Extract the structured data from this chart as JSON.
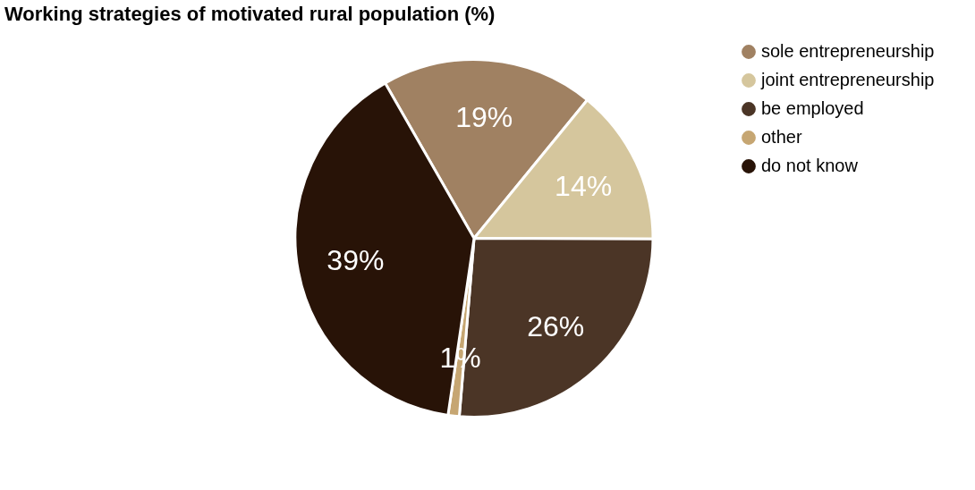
{
  "chart_data": {
    "type": "pie",
    "title": "Working strategies of motivated rural population (%)",
    "categories": [
      "sole entrepreneurship",
      "joint entrepreneurship",
      "be employed",
      "other",
      "do not know"
    ],
    "values": [
      19,
      14,
      26,
      1,
      39
    ],
    "colors": [
      "#a08162",
      "#d5c69d",
      "#4b3526",
      "#c6a672",
      "#281307"
    ],
    "value_labels": [
      "19%",
      "14%",
      "26%",
      "1%",
      "39%"
    ],
    "legend": "top right"
  }
}
